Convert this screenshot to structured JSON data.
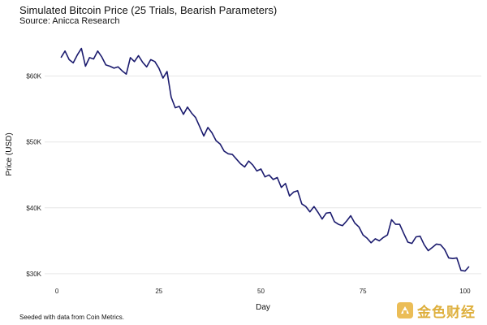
{
  "header": {
    "title": "Simulated Bitcoin Price (25 Trials, Bearish Parameters)",
    "subtitle": "Source: Anicca Research"
  },
  "footer": {
    "caption": "Seeded with data from Coin Metrics.",
    "watermark_text": "金色财经"
  },
  "colors": {
    "line": "#1b1b6e",
    "grid": "#e6e6e6",
    "watermark": "#d9a21b"
  },
  "chart_data": {
    "type": "line",
    "title": "Simulated Bitcoin Price (25 Trials, Bearish Parameters)",
    "subtitle": "Source: Anicca Research",
    "xlabel": "Day",
    "ylabel": "Price (USD)",
    "xlim": [
      -3,
      104
    ],
    "ylim": [
      29000,
      66000
    ],
    "xticks": [
      0,
      25,
      50,
      75,
      100
    ],
    "xtick_labels": [
      "0",
      "25",
      "50",
      "75",
      "100"
    ],
    "yticks": [
      30000,
      40000,
      50000,
      60000
    ],
    "ytick_labels": [
      "$30K",
      "$40K",
      "$50K",
      "$60K"
    ],
    "grid": "horizontal",
    "series": [
      {
        "x": [
          1,
          2,
          3,
          4,
          5,
          6,
          7,
          8,
          9,
          10,
          11,
          12,
          13,
          14,
          15,
          16,
          17,
          18,
          19,
          20,
          21,
          22,
          23,
          24,
          25,
          26,
          27,
          28,
          29,
          30,
          31,
          32,
          33,
          34,
          35,
          36,
          37,
          38,
          39,
          40,
          41,
          42,
          43,
          44,
          45,
          46,
          47,
          48,
          49,
          50,
          51,
          52,
          53,
          54,
          55,
          56,
          57,
          58,
          59,
          60,
          61,
          62,
          63,
          64,
          65,
          66,
          67,
          68,
          69,
          70,
          71,
          72,
          73,
          74,
          75,
          76,
          77,
          78,
          79,
          80,
          81,
          82,
          83,
          84,
          85,
          86,
          87,
          88,
          89,
          90,
          91,
          92,
          93,
          94,
          95,
          96,
          97,
          98,
          99,
          100,
          101
        ],
        "values": [
          62800,
          63800,
          62500,
          62000,
          63200,
          64200,
          61500,
          62800,
          62600,
          63800,
          62900,
          61700,
          61500,
          61200,
          61400,
          60800,
          60300,
          62800,
          62200,
          63100,
          62100,
          61400,
          62500,
          62200,
          61200,
          59700,
          60700,
          56800,
          55200,
          55400,
          54200,
          55300,
          54400,
          53700,
          52300,
          50900,
          52200,
          51400,
          50200,
          49700,
          48600,
          48200,
          48100,
          47400,
          46700,
          46200,
          47100,
          46500,
          45600,
          45900,
          44700,
          45000,
          44300,
          44600,
          43100,
          43700,
          41800,
          42400,
          42600,
          40600,
          40200,
          39400,
          40200,
          39300,
          38300,
          39200,
          39300,
          37900,
          37500,
          37300,
          38000,
          38800,
          37700,
          37100,
          35900,
          35400,
          34700,
          35300,
          35000,
          35500,
          35900,
          38200,
          37500,
          37500,
          36100,
          34800,
          34600,
          35600,
          35700,
          34400,
          33500,
          34000,
          34500,
          34400,
          33700,
          32400,
          32300,
          32400,
          30500,
          30400,
          31100
        ]
      }
    ]
  }
}
